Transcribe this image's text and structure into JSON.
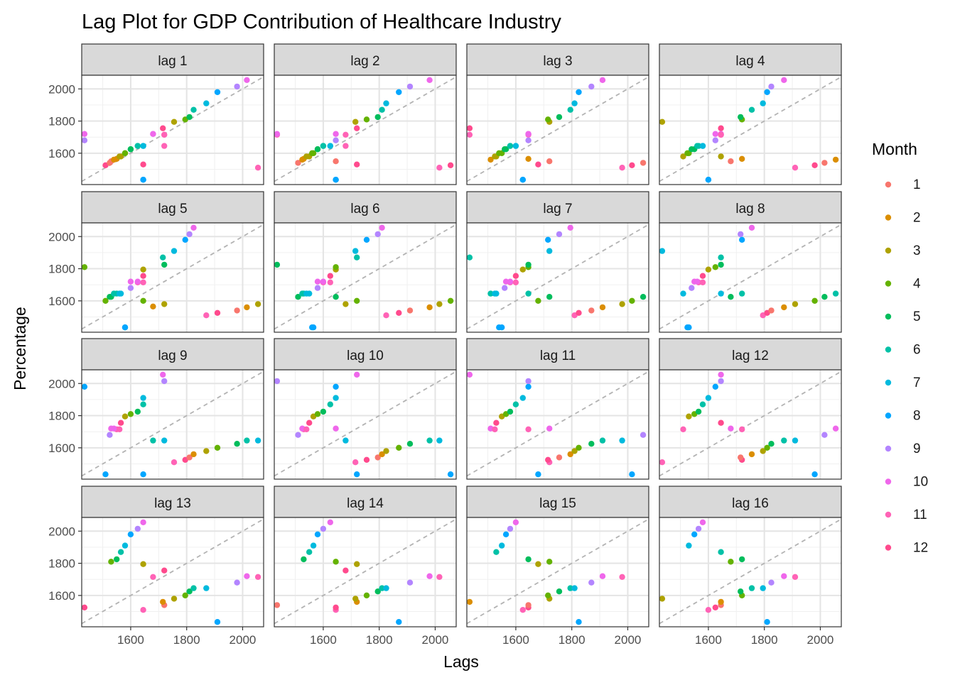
{
  "chart_data": {
    "type": "scatter",
    "title": "Lag Plot for GDP Contribution of Healthcare Industry",
    "xlabel": "Lags",
    "ylabel": "Percentage",
    "legend": {
      "title": "Month",
      "position": "right",
      "entries": [
        {
          "label": "1",
          "color": "#F8766D"
        },
        {
          "label": "2",
          "color": "#DB8E00"
        },
        {
          "label": "3",
          "color": "#AEA200"
        },
        {
          "label": "4",
          "color": "#64B200"
        },
        {
          "label": "5",
          "color": "#00BD5C"
        },
        {
          "label": "6",
          "color": "#00C1A7"
        },
        {
          "label": "7",
          "color": "#00BADE"
        },
        {
          "label": "8",
          "color": "#00A6FF"
        },
        {
          "label": "9",
          "color": "#B385FF"
        },
        {
          "label": "10",
          "color": "#EF67EB"
        },
        {
          "label": "11",
          "color": "#FF63B6"
        },
        {
          "label": "12",
          "color": "#FF4A8D"
        }
      ]
    },
    "xlim": [
      1425,
      2075
    ],
    "ylim": [
      1405,
      2085
    ],
    "x_ticks": [
      1600,
      1800,
      2000
    ],
    "y_ticks": [
      1600,
      1800,
      2000
    ],
    "grid": true,
    "diagonal_reference": "dashed y = x",
    "series_values": [
      1680,
      1720,
      1645,
      1530,
      1550,
      1565,
      1580,
      1600,
      1625,
      1645,
      1645,
      1435,
      1720,
      1715,
      1755,
      1795,
      1810,
      1825,
      1870,
      1910,
      1980,
      2015,
      2055,
      1510,
      1525,
      1540,
      1560,
      1580,
      1600,
      1625,
      1645,
      1645,
      1435,
      1680,
      1720,
      1715
    ],
    "series_months": [
      9,
      10,
      11,
      12,
      1,
      2,
      3,
      4,
      5,
      6,
      7,
      8,
      10,
      11,
      12,
      3,
      4,
      5,
      6,
      7,
      8,
      9,
      10,
      11,
      12,
      1,
      2,
      3,
      4,
      5,
      6,
      7,
      8,
      9,
      10,
      11
    ],
    "facets": [
      {
        "label": "lag 1",
        "lag": 1
      },
      {
        "label": "lag 2",
        "lag": 2
      },
      {
        "label": "lag 3",
        "lag": 3
      },
      {
        "label": "lag 4",
        "lag": 4
      },
      {
        "label": "lag 5",
        "lag": 5
      },
      {
        "label": "lag 6",
        "lag": 6
      },
      {
        "label": "lag 7",
        "lag": 7
      },
      {
        "label": "lag 8",
        "lag": 8
      },
      {
        "label": "lag 9",
        "lag": 9
      },
      {
        "label": "lag 10",
        "lag": 10
      },
      {
        "label": "lag 11",
        "lag": 11
      },
      {
        "label": "lag 12",
        "lag": 12
      },
      {
        "label": "lag 13",
        "lag": 13
      },
      {
        "label": "lag 14",
        "lag": 14
      },
      {
        "label": "lag 15",
        "lag": 15
      },
      {
        "label": "lag 16",
        "lag": 16
      }
    ]
  }
}
